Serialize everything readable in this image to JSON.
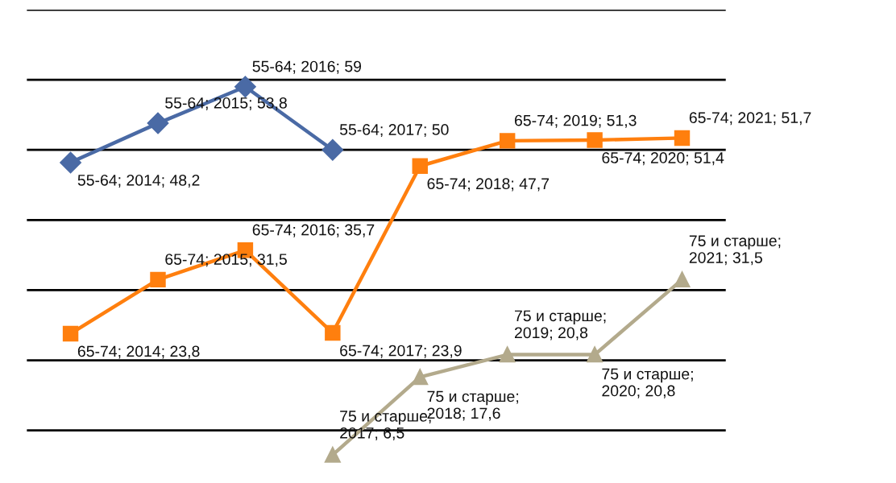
{
  "chart_data": {
    "type": "line",
    "categories": [
      null,
      null,
      null,
      null,
      null,
      null,
      null,
      null
    ],
    "yticks": [
      {
        "value": 10,
        "label": null
      },
      {
        "value": 20,
        "label": null
      },
      {
        "value": 30,
        "label": null
      },
      {
        "value": 40,
        "label": null
      },
      {
        "value": 50,
        "label": null
      },
      {
        "value": 60,
        "label": null
      },
      {
        "value": 70,
        "label": null
      }
    ],
    "grid": "y",
    "legend": false,
    "series": [
      {
        "color": "#4a6aa5",
        "marker": "diamond",
        "values": [
          48.2,
          53.8,
          59,
          50,
          null,
          null,
          null,
          null
        ],
        "value_labels": [
          "55-64; 2014; 48,2",
          "55-64; 2015; 53,8",
          "55-64; 2016; 59",
          "55-64; 2017; 50",
          null,
          null,
          null,
          null
        ]
      },
      {
        "color": "#ff7f0e",
        "marker": "square",
        "values": [
          23.8,
          31.5,
          35.7,
          23.9,
          47.7,
          51.3,
          51.4,
          51.7
        ],
        "value_labels": [
          "65-74; 2014; 23,8",
          "65-74; 2015; 31,5",
          "65-74; 2016; 35,7",
          "65-74; 2017; 23,9",
          "65-74; 2018; 47,7",
          "65-74; 2019; 51,3",
          "65-74; 2020; 51,4",
          "65-74; 2021; 51,7"
        ]
      },
      {
        "color": "#b3aa8c",
        "marker": "triangle",
        "values": [
          null,
          null,
          null,
          6.5,
          17.6,
          20.8,
          20.8,
          31.5
        ],
        "value_labels": [
          null,
          null,
          null,
          "75 и старше;\n2017; 6,5",
          "75 и старше;\n2018; 17,6",
          "75 и старше;\n2019; 20,8",
          "75 и старше;\n2020; 20,8",
          "75 и старше;\n2021; 31,5"
        ]
      }
    ]
  }
}
